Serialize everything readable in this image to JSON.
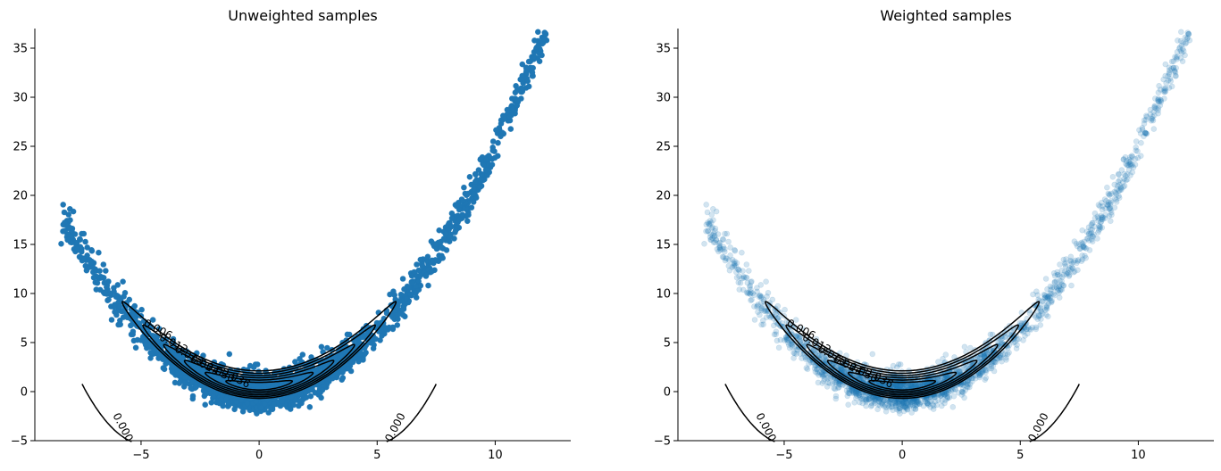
{
  "chart_data": [
    {
      "type": "scatter",
      "title": "Unweighted samples",
      "xlabel": "",
      "ylabel": "",
      "xlim": [
        -9.5,
        13.2
      ],
      "ylim": [
        -5,
        37
      ],
      "xticks": [
        -5,
        0,
        5,
        10
      ],
      "yticks": [
        -5,
        0,
        5,
        10,
        15,
        20,
        25,
        30,
        35
      ],
      "xtick_labels": [
        "−5",
        "0",
        "5",
        "10"
      ],
      "ytick_labels": [
        "−5",
        "0",
        "5",
        "10",
        "15",
        "20",
        "25",
        "30",
        "35"
      ],
      "grid": false,
      "legend": "none",
      "spines": "left-bottom",
      "point_color": "#1f77b4",
      "point_alpha": 1.0,
      "scatter_shape": {
        "relation": "y = 0.25*x^2 + noise",
        "x_range": [
          -8.4,
          12.2
        ],
        "noise_sd": 0.9,
        "n_points": 2500
      },
      "contours": {
        "color": "#000000",
        "center": [
          0,
          0.6
        ],
        "levels": [
          0.006,
          0.012,
          0.018,
          0.024,
          0.03,
          0.036
        ],
        "level_labels": [
          "0.006",
          "0.012",
          "0.018",
          "0.024",
          "0.030",
          "0.036"
        ],
        "outer_branch_label": "0.000"
      }
    },
    {
      "type": "scatter",
      "title": "Weighted samples",
      "xlabel": "",
      "ylabel": "",
      "xlim": [
        -9.5,
        13.2
      ],
      "ylim": [
        -5,
        37
      ],
      "xticks": [
        -5,
        0,
        5,
        10
      ],
      "yticks": [
        -5,
        0,
        5,
        10,
        15,
        20,
        25,
        30,
        35
      ],
      "xtick_labels": [
        "−5",
        "0",
        "5",
        "10"
      ],
      "ytick_labels": [
        "−5",
        "0",
        "5",
        "10",
        "15",
        "20",
        "25",
        "30",
        "35"
      ],
      "grid": false,
      "legend": "none",
      "spines": "left-bottom",
      "point_color": "#1f77b4",
      "point_alpha": 0.2,
      "scatter_shape": {
        "relation": "y = 0.25*x^2 + noise",
        "x_range": [
          -8.4,
          12.2
        ],
        "noise_sd": 0.9,
        "n_points": 2500
      },
      "contours": {
        "color": "#000000",
        "center": [
          0,
          0.6
        ],
        "levels": [
          0.006,
          0.012,
          0.018,
          0.024,
          0.03,
          0.036
        ],
        "level_labels": [
          "0.006",
          "0.012",
          "0.018",
          "0.024",
          "0.030",
          "0.036"
        ],
        "outer_branch_label": "0.000"
      }
    }
  ]
}
